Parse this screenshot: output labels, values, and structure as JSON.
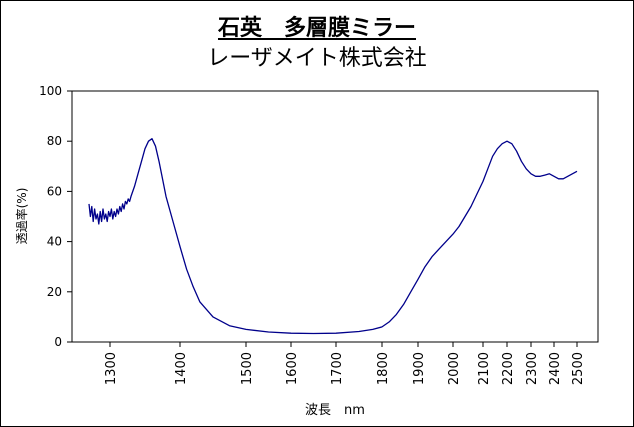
{
  "title": "石英　多層膜ミラー",
  "subtitle": "レーザメイト株式会社",
  "chart_data": {
    "type": "line",
    "xlabel": "波長　nm",
    "ylabel": "透過率(%)",
    "ylim": [
      0,
      100
    ],
    "yticks": [
      0,
      20,
      40,
      60,
      80,
      100
    ],
    "xticks": [
      1300,
      1400,
      1500,
      1600,
      1700,
      1800,
      1900,
      2000,
      2100,
      2200,
      2300,
      2400,
      2500
    ],
    "grid": false,
    "series": [
      {
        "color": "#00008b",
        "x": [
          1270,
          1272,
          1274,
          1276,
          1278,
          1280,
          1282,
          1284,
          1286,
          1288,
          1290,
          1292,
          1294,
          1296,
          1298,
          1300,
          1302,
          1304,
          1306,
          1308,
          1310,
          1312,
          1314,
          1316,
          1318,
          1320,
          1322,
          1324,
          1326,
          1328,
          1330,
          1335,
          1340,
          1345,
          1350,
          1355,
          1360,
          1365,
          1370,
          1375,
          1380,
          1390,
          1400,
          1410,
          1420,
          1430,
          1450,
          1475,
          1500,
          1550,
          1600,
          1650,
          1700,
          1750,
          1780,
          1800,
          1820,
          1840,
          1860,
          1880,
          1900,
          1920,
          1940,
          1960,
          1980,
          2000,
          2020,
          2040,
          2060,
          2080,
          2100,
          2120,
          2140,
          2160,
          2180,
          2200,
          2220,
          2240,
          2260,
          2280,
          2300,
          2320,
          2340,
          2360,
          2380,
          2400,
          2420,
          2440,
          2460,
          2480,
          2500
        ],
        "y": [
          55,
          50,
          54,
          48,
          53,
          49,
          51,
          47,
          52,
          48,
          53,
          49,
          51,
          48,
          52,
          50,
          53,
          49,
          52,
          50,
          53,
          51,
          54,
          52,
          55,
          53,
          56,
          55,
          57,
          56,
          58,
          62,
          67,
          72,
          77,
          80,
          81,
          78,
          72,
          65,
          58,
          48,
          38,
          29,
          22,
          16,
          10,
          6.5,
          5,
          4,
          3.5,
          3.4,
          3.5,
          4.2,
          5,
          6,
          8,
          11,
          15,
          20,
          25,
          30,
          34,
          37,
          40,
          43,
          46,
          50,
          54,
          59,
          64,
          69,
          74,
          77,
          79,
          80,
          79,
          76,
          72,
          69,
          67,
          66,
          66,
          66.5,
          67,
          66,
          65,
          65,
          66,
          67,
          68
        ]
      }
    ]
  }
}
